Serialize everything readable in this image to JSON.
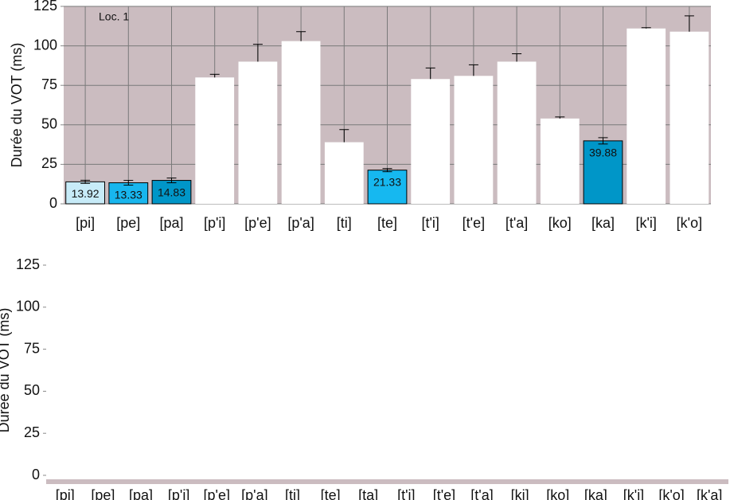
{
  "chart_data": [
    {
      "type": "bar",
      "annotation": "Loc. 1",
      "ylabel": "Durée du VOT (ms)",
      "categories": [
        "[pi]",
        "[pe]",
        "[pa]",
        "[p'i]",
        "[p'e]",
        "[p'a]",
        "[ti]",
        "[te]",
        "[t'i]",
        "[t'e]",
        "[t'a]",
        "[ko]",
        "[ka]",
        "[k'i]",
        "[k'o]"
      ],
      "values": [
        13.92,
        13.33,
        14.83,
        80,
        90,
        103,
        39,
        21.33,
        79,
        81,
        90,
        54,
        39.88,
        111,
        109
      ],
      "value_labels": [
        "13.92",
        "13.33",
        "14.83",
        null,
        null,
        null,
        null,
        "21.33",
        null,
        null,
        null,
        null,
        "39.88",
        null,
        null
      ],
      "errors": [
        1,
        1.5,
        1.5,
        2,
        11,
        6,
        8,
        1,
        7,
        7,
        5,
        1,
        2,
        0.5,
        10
      ],
      "colors": [
        "#c7ebf8",
        "#18b6ee",
        "#0096c8",
        "#ffffff",
        "#ffffff",
        "#ffffff",
        "#ffffff",
        "#16b8f0",
        "#ffffff",
        "#ffffff",
        "#ffffff",
        "#ffffff",
        "#0096c8",
        "#ffffff",
        "#ffffff"
      ],
      "background": "#cbbcc0",
      "ylim": [
        0,
        125
      ],
      "yticks": [
        0,
        25,
        50,
        75,
        100,
        125
      ],
      "grid": true
    },
    {
      "type": "bar",
      "ylabel": "Durée du VOT (ms)",
      "categories": [
        "[pi]",
        "[pe]",
        "[pa]",
        "[p'i]",
        "[p'e]",
        "[p'a]",
        "[ti]",
        "[te]",
        "[ta]",
        "[t'i]",
        "[t'e]",
        "[t'a]",
        "[ki]",
        "[ko]",
        "[ka]",
        "[k'i]",
        "[k'o]",
        "[k'a]"
      ],
      "background": "#ffffff",
      "ylim": [
        0,
        125
      ],
      "yticks": [
        0,
        25,
        50,
        75,
        100,
        125
      ],
      "grid": false
    }
  ]
}
